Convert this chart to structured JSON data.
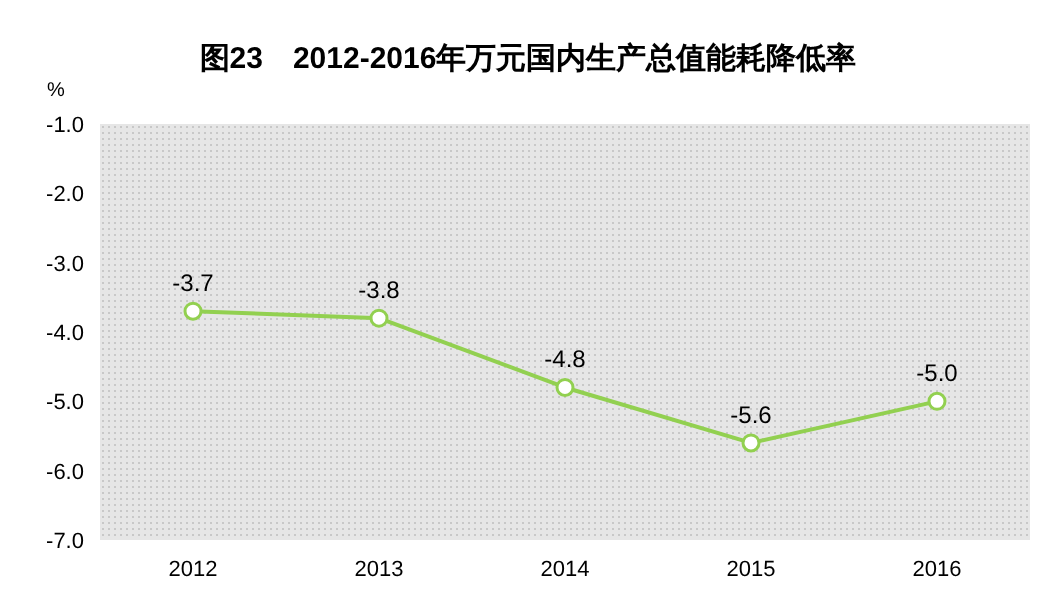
{
  "chart_data": {
    "type": "line",
    "title": "图23　2012-2016年万元国内生产总值能耗降低率",
    "ylabel": "%",
    "categories": [
      "2012",
      "2013",
      "2014",
      "2015",
      "2016"
    ],
    "series": [
      {
        "color": "#92d050",
        "values": [
          -3.7,
          -3.8,
          -4.8,
          -5.6,
          -5.0
        ],
        "value_labels": [
          "-3.7",
          "-3.8",
          "-4.8",
          "-5.6",
          "-5.0"
        ]
      }
    ],
    "ylim": [
      -7,
      -1
    ],
    "yticks": [
      {
        "value": -7,
        "label": "-7.0"
      },
      {
        "value": -6,
        "label": "-6.0"
      },
      {
        "value": -5,
        "label": "-5.0"
      },
      {
        "value": -4,
        "label": "-4.0"
      },
      {
        "value": -3,
        "label": "-3.0"
      },
      {
        "value": -2,
        "label": "-2.0"
      },
      {
        "value": -1,
        "label": "-1.0"
      }
    ],
    "marker": "circle",
    "grid": false
  }
}
